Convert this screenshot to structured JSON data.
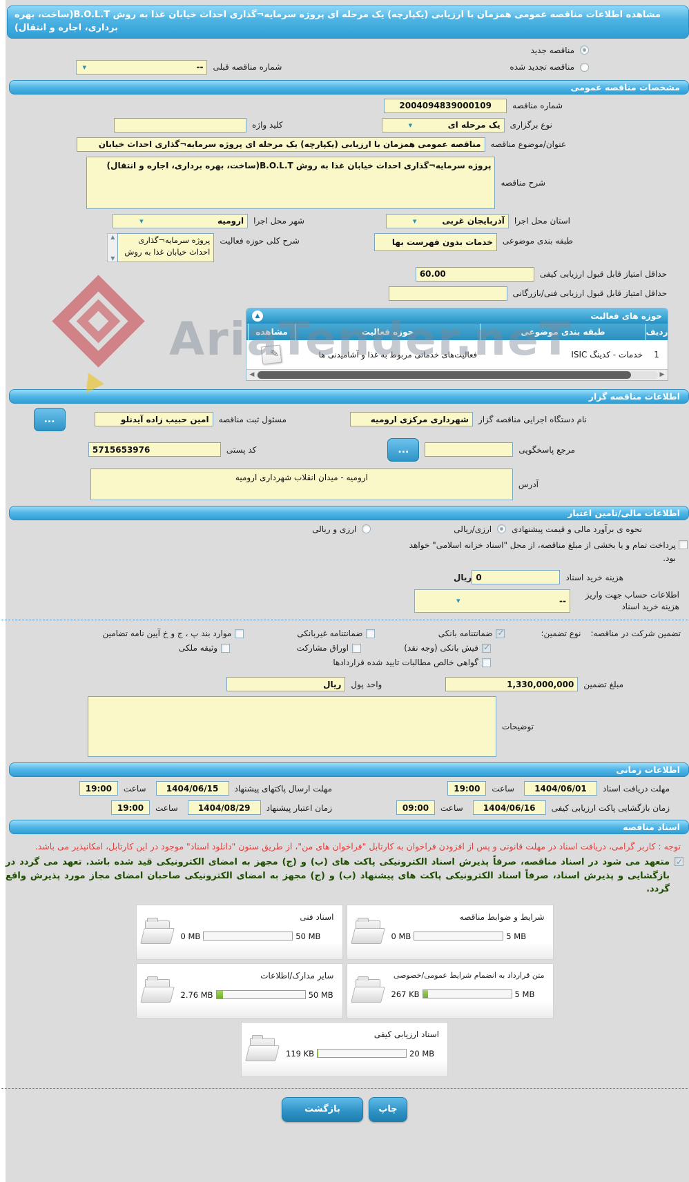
{
  "page": {
    "title": "مشاهده اطلاعات مناقصه عمومی همزمان با ارزیابی (یکپارچه) یک مرحله ای پروژه سرمایه¬گذاری احداث خیابان غذا به روش B.O.L.T(ساخت، بهره برداری، اجاره و انتقال)",
    "watermark": "AriaTender.neT"
  },
  "top": {
    "radio_new": "مناقصه جدید",
    "radio_new_checked": true,
    "radio_renewed": "مناقصه تجدید شده",
    "radio_renewed_checked": false,
    "prev_number_label": "شماره مناقصه قبلی",
    "prev_number_value": "--"
  },
  "general": {
    "header": "مشخصات مناقصه عمومی",
    "number_label": "شماره مناقصه",
    "number_value": "2004094839000109",
    "type_label": "نوع برگزاری",
    "type_value": "یک مرحله ای",
    "keyword_label": "کلید واژه",
    "keyword_value": "",
    "subject_label": "عنوان/موضوع مناقصه",
    "subject_value": "مناقصه عمومی همزمان با ارزیابی (یکپارچه) یک مرحله ای پروژه سرمایه¬گذاری احداث خیابان",
    "desc_label": "شرح مناقصه",
    "desc_value": "پروژه سرمایه¬گذاری احداث خیابان غذا به روش B.O.L.T(ساخت، بهره برداری، اجاره و انتقال)",
    "province_label": "استان محل اجرا",
    "province_value": "آذربایجان غربی",
    "city_label": "شهر محل اجرا",
    "city_value": "ارومیه",
    "category_label": "طبقه بندی موضوعی",
    "category_value": "خدمات بدون فهرست بها",
    "scope_label": "شرح کلی حوزه فعالیت",
    "scope_value": "پروژه سرمایه¬گذاری احداث خیابان غذا به روش",
    "min_quality_label": "حداقل امتیاز قابل قبول ارزیابی کیفی",
    "min_quality_value": "60.00",
    "min_tech_label": "حداقل امتیاز قابل قبول ارزیابی فنی/بازرگانی",
    "min_tech_value": ""
  },
  "activity_table": {
    "header": "حوزه های فعالیت",
    "columns": [
      "ردیف",
      "طبقه بندی موضوعی",
      "حوزه فعالیت",
      "مشاهده"
    ],
    "rows": [
      {
        "index": "1",
        "category": "خدمات - کدینگ ISIC",
        "field": "فعالیت‌های خدماتی مربوط به غذا و آشامیدنی ها"
      }
    ]
  },
  "agency": {
    "header": "اطلاعات مناقصه گزار",
    "agency_label": "نام دستگاه اجرایی مناقصه گزار",
    "agency_value": "شهرداری مرکزی ارومیه",
    "registrar_label": "مسئول ثبت مناقصه",
    "registrar_value": "امین حبیب زاده آیدنلو",
    "more_button": "...",
    "reference_label": "مرجع پاسخگویی",
    "reference_value": "",
    "postal_label": "کد پستی",
    "postal_value": "5715653976",
    "address_label": "آدرس",
    "address_value": "ارومیه - میدان انقلاب شهرداری ارومیه"
  },
  "financial": {
    "header": "اطلاعات مالی/تامین اعتبار",
    "estimate_label": "نحوه ی برآورد مالی و قیمت پیشنهادی",
    "estimate_option1": "ارزی/ریالی",
    "estimate_option1_checked": true,
    "estimate_option2": "ارزی و ریالی",
    "estimate_option2_checked": false,
    "treasury_note": "پرداخت تمام و یا بخشی از مبلغ مناقصه، از محل \"اسناد خزانه اسلامی\" خواهد بود.",
    "treasury_checked": false,
    "doc_fee_label": "هزینه خرید اسناد",
    "doc_fee_value": "0",
    "doc_fee_unit": "ریال",
    "account_label": "اطلاعات حساب جهت واریز هزینه خرید اسناد",
    "account_value": "--",
    "guarantee_section_label": "تضمین شرکت در مناقصه:",
    "guarantee_type_label": "نوع تضمین:",
    "guarantee_options": [
      {
        "label": "ضمانتنامه بانکی",
        "checked": true
      },
      {
        "label": "ضمانتنامه غیربانکی",
        "checked": false
      },
      {
        "label": "موارد بند پ ، ج و خ آیین نامه تضامین",
        "checked": false
      },
      {
        "label": "فیش بانکی (وجه نقد)",
        "checked": true
      },
      {
        "label": "اوراق مشارکت",
        "checked": false
      },
      {
        "label": "وثیقه ملکی",
        "checked": false
      },
      {
        "label": "گواهی خالص مطالبات تایید شده قراردادها",
        "checked": false
      }
    ],
    "amount_label": "مبلغ تضمین",
    "amount_value": "1,330,000,000",
    "currency_label": "واحد پول",
    "currency_value": "ریال",
    "notes_label": "توضیحات",
    "notes_value": ""
  },
  "schedule": {
    "header": "اطلاعات زمانی",
    "items": [
      {
        "label": "مهلت دریافت اسناد",
        "date": "1404/06/01",
        "time_label": "ساعت",
        "time": "19:00"
      },
      {
        "label": "مهلت ارسال پاکتهای پیشنهاد",
        "date": "1404/06/15",
        "time_label": "ساعت",
        "time": "19:00"
      },
      {
        "label": "زمان بازگشایی پاکت ارزیابی کیفی",
        "date": "1404/06/16",
        "time_label": "ساعت",
        "time": "09:00"
      },
      {
        "label": "زمان اعتبار پیشنهاد",
        "date": "1404/08/29",
        "time_label": "ساعت",
        "time": "19:00"
      }
    ]
  },
  "documents": {
    "header": "اسناد مناقصه",
    "notice_red": "توجه : کاربر گرامی، دریافت اسناد در مهلت قانونی و پس از افزودن فراخوان به کارتابل \"فراخوان های من\"، از طریق ستون \"دانلود اسناد\" موجود در این کارتابل، امکانپذیر می باشد.",
    "notice_green": "متعهد می شود در اسناد مناقصه، صرفاً پذیرش اسناد الکترونیکی پاکت های (ب) و (ج) مجهز به امضای الکترونیکی قید شده باشد. تعهد می گردد در بازگشایی و پذیرش اسناد، صرفاً اسناد الکترونیکی پاکت های پیشنهاد (ب) و (ج) مجهز به امضای الکترونیکی صاحبان امضای مجاز مورد پذیرش واقع گردد.",
    "notice_green_checked": true,
    "cards": [
      {
        "title": "شرایط و ضوابط مناقصه",
        "current": "0 MB",
        "max": "5 MB",
        "fill": 0
      },
      {
        "title": "اسناد فنی",
        "current": "0 MB",
        "max": "50 MB",
        "fill": 0
      },
      {
        "title": "متن قرارداد به انضمام شرایط عمومی/خصوصی",
        "current": "267 KB",
        "max": "5 MB",
        "fill": 6
      },
      {
        "title": "سایر مدارک/اطلاعات",
        "current": "2.76 MB",
        "max": "50 MB",
        "fill": 7
      },
      {
        "title": "اسناد ارزیابی کیفی",
        "current": "119 KB",
        "max": "20 MB",
        "fill": 1
      }
    ]
  },
  "footer": {
    "print_button": "چاپ",
    "back_button": "بازگشت"
  }
}
